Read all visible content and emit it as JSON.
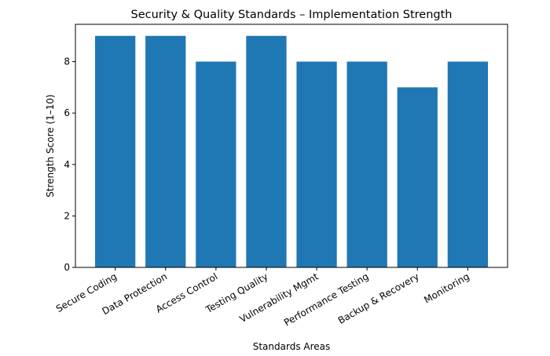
{
  "chart_data": {
    "type": "bar",
    "title": "Security & Quality Standards – Implementation Strength",
    "xlabel": "Standards Areas",
    "ylabel": "Strength Score (1–10)",
    "categories": [
      "Secure Coding",
      "Data Protection",
      "Access Control",
      "Testing Quality",
      "Vulnerability Mgmt",
      "Performance Testing",
      "Backup & Recovery",
      "Monitoring"
    ],
    "values": [
      9,
      9,
      8,
      9,
      8,
      8,
      7,
      8
    ],
    "ylim": [
      0,
      9.45
    ],
    "yticks": [
      0,
      2,
      4,
      6,
      8
    ],
    "grid": false,
    "bar_color": "#1f77b4"
  }
}
